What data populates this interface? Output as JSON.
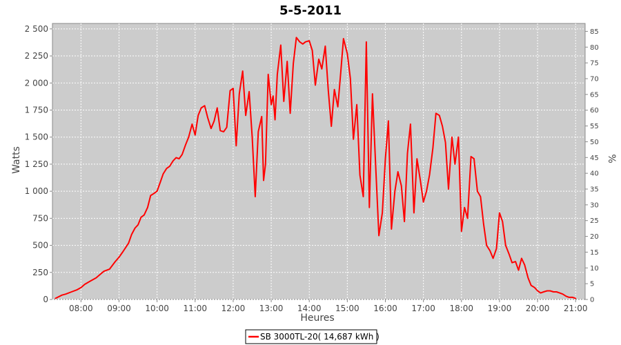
{
  "chart_data": {
    "type": "line",
    "title": "5-5-2011",
    "xlabel": "Heures",
    "ylabel": "Watts",
    "y2label": "%",
    "xlim": [
      7.25,
      21.25
    ],
    "ylim": [
      0,
      2550
    ],
    "y2lim": [
      0,
      87.5
    ],
    "x_ticks": [
      8,
      9,
      10,
      11,
      12,
      13,
      14,
      15,
      16,
      17,
      18,
      19,
      20,
      21
    ],
    "x_tick_labels": [
      "08:00",
      "09:00",
      "10:00",
      "11:00",
      "12:00",
      "13:00",
      "14:00",
      "15:00",
      "16:00",
      "17:00",
      "18:00",
      "19:00",
      "20:00",
      "21:00"
    ],
    "y_ticks": [
      0,
      250,
      500,
      750,
      1000,
      1250,
      1500,
      1750,
      2000,
      2250,
      2500
    ],
    "y_tick_labels": [
      "0",
      "250",
      "500",
      "750",
      "1 000",
      "1 250",
      "1 500",
      "1 750",
      "2 000",
      "2 250",
      "2 500"
    ],
    "y2_ticks": [
      0,
      5,
      10,
      15,
      20,
      25,
      30,
      35,
      40,
      45,
      50,
      55,
      60,
      65,
      70,
      75,
      80,
      85
    ],
    "y2_tick_labels": [
      "0",
      "5",
      "10",
      "15",
      "20",
      "25",
      "30",
      "35",
      "40",
      "45",
      "50",
      "55",
      "60",
      "65",
      "70",
      "75",
      "80",
      "85"
    ],
    "grid": true,
    "legend_position": "bottom-center",
    "colors": {
      "series": "#ff0000",
      "plot_background": "#cccccc",
      "grid": "#ffffff"
    },
    "series": [
      {
        "name": "SB 3000TL-20( 14,687 kWh )",
        "x": [
          7.33,
          7.5,
          7.6,
          7.75,
          7.9,
          8.0,
          8.1,
          8.25,
          8.4,
          8.5,
          8.6,
          8.75,
          8.9,
          9.0,
          9.1,
          9.25,
          9.33,
          9.42,
          9.5,
          9.58,
          9.66,
          9.75,
          9.83,
          9.92,
          10.0,
          10.08,
          10.16,
          10.25,
          10.33,
          10.42,
          10.5,
          10.58,
          10.66,
          10.75,
          10.83,
          10.92,
          11.0,
          11.08,
          11.16,
          11.25,
          11.33,
          11.42,
          11.5,
          11.58,
          11.66,
          11.75,
          11.83,
          11.92,
          12.0,
          12.08,
          12.16,
          12.25,
          12.33,
          12.42,
          12.5,
          12.58,
          12.66,
          12.75,
          12.8,
          12.85,
          12.92,
          13.0,
          13.05,
          13.1,
          13.16,
          13.25,
          13.33,
          13.42,
          13.5,
          13.58,
          13.66,
          13.75,
          13.83,
          13.9,
          14.0,
          14.08,
          14.16,
          14.25,
          14.33,
          14.42,
          14.5,
          14.58,
          14.66,
          14.75,
          14.83,
          14.9,
          15.0,
          15.08,
          15.16,
          15.25,
          15.33,
          15.42,
          15.5,
          15.58,
          15.66,
          15.75,
          15.83,
          15.92,
          16.0,
          16.08,
          16.16,
          16.25,
          16.33,
          16.42,
          16.5,
          16.58,
          16.66,
          16.75,
          16.83,
          16.92,
          17.0,
          17.08,
          17.16,
          17.25,
          17.33,
          17.42,
          17.5,
          17.58,
          17.66,
          17.75,
          17.83,
          17.92,
          18.0,
          18.08,
          18.16,
          18.25,
          18.33,
          18.42,
          18.5,
          18.58,
          18.66,
          18.75,
          18.83,
          18.92,
          19.0,
          19.08,
          19.16,
          19.25,
          19.33,
          19.42,
          19.5,
          19.58,
          19.66,
          19.75,
          19.83,
          19.92,
          20.0,
          20.08,
          20.16,
          20.25,
          20.33,
          20.42,
          20.5,
          20.58,
          20.66,
          20.75,
          20.83,
          20.92,
          21.0
        ],
        "values": [
          10,
          40,
          50,
          70,
          90,
          110,
          140,
          170,
          200,
          230,
          260,
          280,
          350,
          390,
          440,
          520,
          600,
          660,
          690,
          760,
          780,
          850,
          960,
          980,
          1000,
          1080,
          1160,
          1210,
          1230,
          1280,
          1310,
          1300,
          1340,
          1430,
          1500,
          1620,
          1520,
          1700,
          1770,
          1790,
          1680,
          1580,
          1650,
          1770,
          1560,
          1550,
          1590,
          1930,
          1950,
          1420,
          1900,
          2110,
          1700,
          1920,
          1500,
          950,
          1550,
          1690,
          1100,
          1250,
          2080,
          1800,
          1880,
          1660,
          2080,
          2350,
          1830,
          2200,
          1720,
          2180,
          2420,
          2380,
          2360,
          2380,
          2390,
          2300,
          1980,
          2220,
          2130,
          2340,
          1930,
          1600,
          1940,
          1780,
          2110,
          2410,
          2270,
          2040,
          1480,
          1800,
          1150,
          950,
          2380,
          850,
          1900,
          1200,
          590,
          800,
          1300,
          1650,
          650,
          1000,
          1180,
          1050,
          720,
          1350,
          1620,
          800,
          1300,
          1100,
          900,
          1000,
          1150,
          1400,
          1720,
          1700,
          1600,
          1450,
          1020,
          1500,
          1250,
          1500,
          630,
          850,
          750,
          1320,
          1300,
          1000,
          950,
          700,
          500,
          450,
          380,
          470,
          800,
          720,
          500,
          420,
          340,
          350,
          270,
          380,
          320,
          200,
          130,
          110,
          80,
          60,
          70,
          80,
          80,
          70,
          70,
          60,
          50,
          30,
          20,
          20,
          10
        ]
      }
    ]
  }
}
